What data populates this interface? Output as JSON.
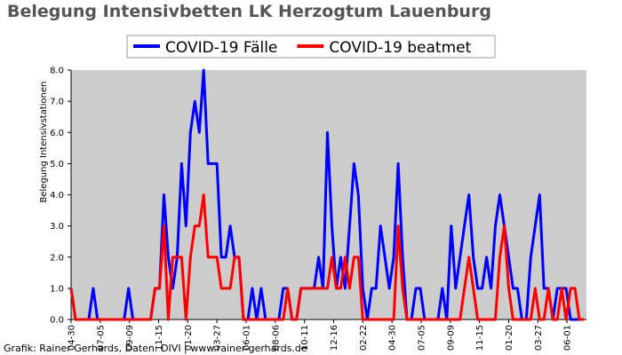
{
  "chart_data": {
    "type": "line",
    "title": "Belegung Intensivbetten LK Herzogtum Lauenburg",
    "y_label": "Belegung Intensivstationen",
    "footer": "Grafik: Rainer Gerhards, Daten: DIVI | www.rainer-gerhards.de",
    "x": [
      0,
      10,
      20,
      30,
      40,
      50,
      60,
      70,
      80,
      90,
      100,
      110,
      120,
      130,
      140,
      150,
      160,
      170,
      180,
      190,
      200,
      210,
      220,
      230,
      240,
      250,
      260,
      270,
      280,
      290,
      300,
      310,
      320,
      330,
      340,
      350,
      360,
      370,
      380,
      390,
      400,
      410,
      420,
      430,
      440,
      450,
      460,
      470,
      480,
      490,
      500,
      510,
      520,
      530,
      540,
      550,
      560,
      570,
      580,
      590,
      600,
      610,
      620,
      630,
      640,
      650,
      660,
      670,
      680,
      690,
      700,
      710,
      720,
      730,
      740,
      750,
      760,
      770,
      780,
      790,
      800,
      810,
      820,
      830,
      840,
      850,
      860,
      870,
      880,
      890,
      900,
      910,
      920,
      930,
      940,
      950,
      960,
      970,
      980,
      990,
      1000,
      1010,
      1020,
      1030,
      1040,
      1050,
      1060,
      1070,
      1080,
      1090,
      1100,
      1110,
      1120,
      1130,
      1140,
      1150,
      1160
    ],
    "series": [
      {
        "name": "COVID-19 Fälle",
        "color": "#0000ff",
        "values": [
          1,
          0,
          0,
          0,
          0,
          1,
          0,
          0,
          0,
          0,
          0,
          0,
          0,
          1,
          0,
          0,
          0,
          0,
          0,
          1,
          1,
          4,
          2,
          1,
          2,
          5,
          3,
          6,
          7,
          6,
          8,
          5,
          5,
          5,
          2,
          2,
          3,
          2,
          2,
          0,
          0,
          1,
          0,
          1,
          0,
          0,
          0,
          0,
          1,
          1,
          0,
          0,
          1,
          1,
          1,
          1,
          2,
          1,
          6,
          3,
          1,
          2,
          1,
          3,
          5,
          4,
          1,
          0,
          1,
          1,
          3,
          2,
          1,
          2,
          5,
          2,
          0,
          0,
          1,
          1,
          0,
          0,
          0,
          0,
          1,
          0,
          3,
          1,
          2,
          3,
          4,
          2,
          1,
          1,
          2,
          1,
          3,
          4,
          3,
          2,
          1,
          1,
          0,
          0,
          2,
          3,
          4,
          1,
          1,
          0,
          1,
          1,
          1,
          0,
          0,
          0,
          0
        ]
      },
      {
        "name": "COVID-19 beatmet",
        "color": "#ff0000",
        "values": [
          1,
          0,
          0,
          0,
          0,
          0,
          0,
          0,
          0,
          0,
          0,
          0,
          0,
          0,
          0,
          0,
          0,
          0,
          0,
          1,
          1,
          3,
          0,
          2,
          2,
          2,
          0,
          2,
          3,
          3,
          4,
          2,
          2,
          2,
          1,
          1,
          1,
          2,
          2,
          0,
          0,
          0,
          0,
          0,
          0,
          0,
          0,
          0,
          0,
          1,
          0,
          0,
          1,
          1,
          1,
          1,
          1,
          1,
          1,
          2,
          1,
          1,
          2,
          1,
          2,
          2,
          0,
          0,
          0,
          0,
          0,
          0,
          0,
          0,
          3,
          1,
          0,
          0,
          0,
          0,
          0,
          0,
          0,
          0,
          0,
          0,
          0,
          0,
          0,
          1,
          2,
          1,
          0,
          0,
          0,
          0,
          0,
          2,
          3,
          1,
          0,
          0,
          0,
          0,
          0,
          1,
          0,
          0,
          1,
          0,
          0,
          1,
          0,
          1,
          1,
          0,
          0
        ]
      }
    ],
    "xlim": [
      0,
      1166
    ],
    "xticks": [
      {
        "value": 0,
        "label": "04-30"
      },
      {
        "value": 66,
        "label": "07-05"
      },
      {
        "value": 132,
        "label": "09-09"
      },
      {
        "value": 198,
        "label": "11-15"
      },
      {
        "value": 264,
        "label": "01-20"
      },
      {
        "value": 330,
        "label": "03-27"
      },
      {
        "value": 396,
        "label": "06-01"
      },
      {
        "value": 462,
        "label": "08-06"
      },
      {
        "value": 528,
        "label": "10-11"
      },
      {
        "value": 594,
        "label": "12-16"
      },
      {
        "value": 660,
        "label": "02-22"
      },
      {
        "value": 726,
        "label": "04-30"
      },
      {
        "value": 792,
        "label": "07-05"
      },
      {
        "value": 858,
        "label": "09-09"
      },
      {
        "value": 924,
        "label": "11-15"
      },
      {
        "value": 990,
        "label": "01-20"
      },
      {
        "value": 1056,
        "label": "03-27"
      },
      {
        "value": 1122,
        "label": "06-01"
      }
    ],
    "ylim": [
      0,
      8
    ],
    "yticks": [
      {
        "value": 0,
        "label": "0.0"
      },
      {
        "value": 1,
        "label": "1.0"
      },
      {
        "value": 2,
        "label": "2.0"
      },
      {
        "value": 3,
        "label": "3.0"
      },
      {
        "value": 4,
        "label": "4.0"
      },
      {
        "value": 5,
        "label": "5.0"
      },
      {
        "value": 6,
        "label": "6.0"
      },
      {
        "value": 7,
        "label": "7.0"
      },
      {
        "value": 8,
        "label": "8.0"
      }
    ],
    "legend": "top"
  }
}
